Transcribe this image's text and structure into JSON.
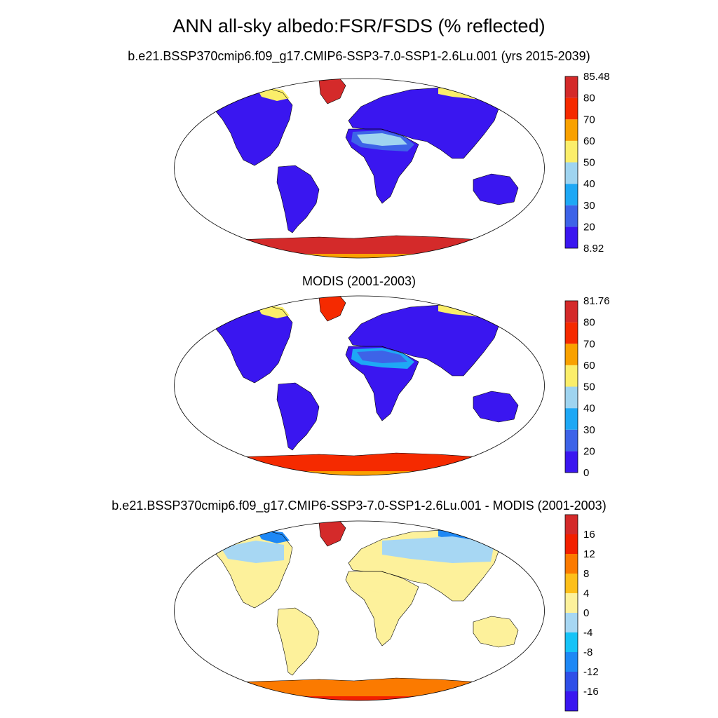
{
  "title": "ANN all-sky albedo:FSR/FSDS (% reflected)",
  "panels": [
    {
      "title": "b.e21.BSSP370cmip6.f09_g17.CMIP6-SSP3-7.0-SSP1-2.6Lu.001 (yrs 2015-2039)",
      "colorbar": {
        "colors": [
          "#3a16f0",
          "#3d63e8",
          "#1ea8f5",
          "#9fd4f0",
          "#fbee6a",
          "#f9a100",
          "#f52a00",
          "#d42a2a"
        ],
        "labels": [
          "8.92",
          "20",
          "30",
          "40",
          "50",
          "60",
          "70",
          "80",
          "85.48"
        ]
      },
      "fields": {
        "land": "#3a16f0",
        "desert": "#9fd4f0",
        "arid_edge": "#3d63e8",
        "ice": "#d42a2a",
        "ice_edge": "#f9a100",
        "greenland": "#d42a2a",
        "arctic_coast": "#fbee6a"
      }
    },
    {
      "title": "MODIS (2001-2003)",
      "colorbar": {
        "colors": [
          "#3a16f0",
          "#3d63e8",
          "#1ea8f5",
          "#9fd4f0",
          "#fbee6a",
          "#f9a100",
          "#f52a00",
          "#d42a2a"
        ],
        "labels": [
          "0",
          "20",
          "30",
          "40",
          "50",
          "60",
          "70",
          "80",
          "81.76"
        ]
      },
      "fields": {
        "land": "#3a16f0",
        "desert": "#3d63e8",
        "arid_edge": "#1ea8f5",
        "ice": "#f52a00",
        "ice_edge": "#f9a100",
        "greenland": "#f52a00",
        "arctic_coast": "#fbee6a"
      }
    },
    {
      "title": "b.e21.BSSP370cmip6.f09_g17.CMIP6-SSP3-7.0-SSP1-2.6Lu.001 - MODIS (2001-2003)",
      "colorbar": {
        "colors": [
          "#3a16f0",
          "#2f4fe8",
          "#1e88f5",
          "#16c3f7",
          "#a7d7f3",
          "#fdf19b",
          "#fdbf1a",
          "#fb7a00",
          "#f22000",
          "#d42a2a"
        ],
        "labels": [
          "-16",
          "-12",
          "-8",
          "-4",
          "0",
          "4",
          "8",
          "12",
          "16"
        ]
      },
      "fields": {
        "land": "#fdf19b",
        "desert": "#fdf19b",
        "arid_edge": "#fdf19b",
        "ice": "#fb7a00",
        "ice_edge": "#f22000",
        "greenland": "#d42a2a",
        "arctic_coast": "#1e88f5",
        "boreal": "#a7d7f3"
      }
    }
  ]
}
